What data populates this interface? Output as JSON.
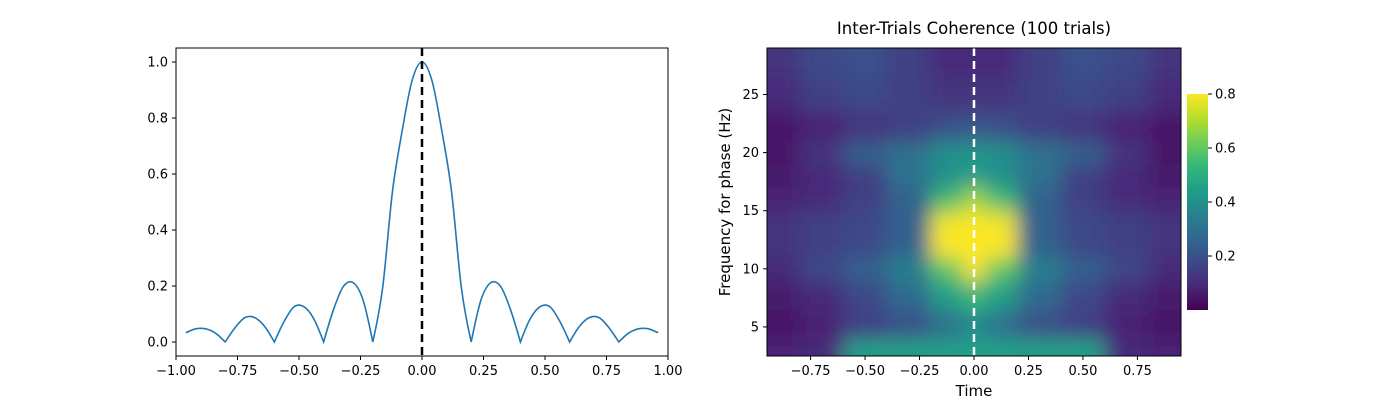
{
  "chart_data": [
    {
      "type": "line",
      "title": "",
      "xlabel": "",
      "ylabel": "",
      "xlim": [
        -1.0,
        1.0
      ],
      "ylim": [
        -0.05,
        1.05
      ],
      "xticks": [
        -1.0,
        -0.75,
        -0.5,
        -0.25,
        0.0,
        0.25,
        0.5,
        0.75,
        1.0
      ],
      "xtick_labels": [
        "−1.00",
        "−0.75",
        "−0.50",
        "−0.25",
        "0.00",
        "0.25",
        "0.50",
        "0.75",
        "1.00"
      ],
      "yticks": [
        0.0,
        0.2,
        0.4,
        0.6,
        0.8,
        1.0
      ],
      "ytick_labels": [
        "0.0",
        "0.2",
        "0.4",
        "0.6",
        "0.8",
        "1.0"
      ],
      "series_color": "#1f77b4",
      "vline": {
        "x": 0.0,
        "style": "dashed",
        "color": "#000000"
      },
      "x": [
        -0.96,
        -0.92,
        -0.88,
        -0.84,
        -0.8,
        -0.76,
        -0.72,
        -0.68,
        -0.64,
        -0.6,
        -0.56,
        -0.52,
        -0.48,
        -0.44,
        -0.4,
        -0.36,
        -0.32,
        -0.28,
        -0.24,
        -0.2,
        -0.16,
        -0.12,
        -0.08,
        -0.04,
        0.0,
        0.04,
        0.08,
        0.12,
        0.16,
        0.2,
        0.24,
        0.28,
        0.32,
        0.36,
        0.4,
        0.44,
        0.48,
        0.52,
        0.56,
        0.6,
        0.64,
        0.68,
        0.72,
        0.76,
        0.8,
        0.84,
        0.88,
        0.92,
        0.96
      ],
      "y": [
        0.033,
        0.047,
        0.047,
        0.032,
        0.0,
        0.051,
        0.087,
        0.087,
        0.056,
        0.0,
        0.074,
        0.126,
        0.126,
        0.083,
        0.0,
        0.115,
        0.198,
        0.212,
        0.151,
        0.0,
        0.194,
        0.538,
        0.757,
        0.935,
        1.0,
        0.935,
        0.757,
        0.538,
        0.194,
        0.0,
        0.151,
        0.212,
        0.198,
        0.115,
        0.0,
        0.083,
        0.126,
        0.126,
        0.074,
        0.0,
        0.056,
        0.087,
        0.087,
        0.051,
        0.0,
        0.032,
        0.047,
        0.047,
        0.033
      ]
    },
    {
      "type": "heatmap",
      "title": "Inter-Trials Coherence (100 trials)",
      "xlabel": "Time",
      "ylabel": "Frequency for phase (Hz)",
      "xlim": [
        -0.95,
        0.95
      ],
      "ylim": [
        2.5,
        29.0
      ],
      "xticks": [
        -0.75,
        -0.5,
        -0.25,
        0.0,
        0.25,
        0.5,
        0.75
      ],
      "xtick_labels": [
        "−0.75",
        "−0.50",
        "−0.25",
        "0.00",
        "0.25",
        "0.50",
        "0.75"
      ],
      "yticks": [
        5,
        10,
        15,
        20,
        25
      ],
      "ytick_labels": [
        "5",
        "10",
        "15",
        "20",
        "25"
      ],
      "colormap": "viridis",
      "colormap_stops": [
        "#440154",
        "#482878",
        "#3e4989",
        "#31688e",
        "#26828e",
        "#1f9e89",
        "#35b779",
        "#6ece58",
        "#b5de2b",
        "#fde725"
      ],
      "vmin": 0.0,
      "vmax": 0.8,
      "colorbar_ticks": [
        0.2,
        0.4,
        0.6,
        0.8
      ],
      "colorbar_tick_labels": [
        "0.2",
        "0.4",
        "0.6",
        "0.8"
      ],
      "vline": {
        "x": 0.0,
        "style": "dashed",
        "color": "#ffffff"
      },
      "x": [
        -0.9,
        -0.7,
        -0.5,
        -0.3,
        -0.1,
        0.0,
        0.1,
        0.3,
        0.5,
        0.7,
        0.9
      ],
      "y": [
        3,
        5,
        8,
        10,
        12,
        14,
        16,
        18,
        20,
        22,
        25,
        28
      ],
      "z": [
        [
          0.08,
          0.1,
          0.45,
          0.45,
          0.45,
          0.45,
          0.45,
          0.45,
          0.45,
          0.1,
          0.08
        ],
        [
          0.05,
          0.08,
          0.15,
          0.2,
          0.3,
          0.4,
          0.3,
          0.2,
          0.15,
          0.08,
          0.05
        ],
        [
          0.06,
          0.1,
          0.18,
          0.28,
          0.45,
          0.55,
          0.45,
          0.28,
          0.18,
          0.1,
          0.06
        ],
        [
          0.1,
          0.18,
          0.25,
          0.35,
          0.6,
          0.8,
          0.6,
          0.35,
          0.25,
          0.18,
          0.1
        ],
        [
          0.12,
          0.15,
          0.18,
          0.25,
          0.8,
          0.8,
          0.8,
          0.25,
          0.18,
          0.15,
          0.12
        ],
        [
          0.12,
          0.15,
          0.18,
          0.25,
          0.78,
          0.8,
          0.78,
          0.25,
          0.18,
          0.15,
          0.12
        ],
        [
          0.08,
          0.1,
          0.15,
          0.25,
          0.55,
          0.7,
          0.55,
          0.25,
          0.15,
          0.1,
          0.08
        ],
        [
          0.06,
          0.1,
          0.15,
          0.3,
          0.4,
          0.45,
          0.4,
          0.3,
          0.15,
          0.1,
          0.06
        ],
        [
          0.05,
          0.12,
          0.25,
          0.3,
          0.4,
          0.42,
          0.4,
          0.3,
          0.25,
          0.12,
          0.05
        ],
        [
          0.05,
          0.08,
          0.12,
          0.15,
          0.2,
          0.22,
          0.2,
          0.15,
          0.12,
          0.08,
          0.05
        ],
        [
          0.1,
          0.15,
          0.18,
          0.15,
          0.12,
          0.12,
          0.12,
          0.15,
          0.18,
          0.15,
          0.1
        ],
        [
          0.12,
          0.18,
          0.2,
          0.15,
          0.1,
          0.1,
          0.1,
          0.15,
          0.2,
          0.18,
          0.12
        ]
      ]
    }
  ]
}
